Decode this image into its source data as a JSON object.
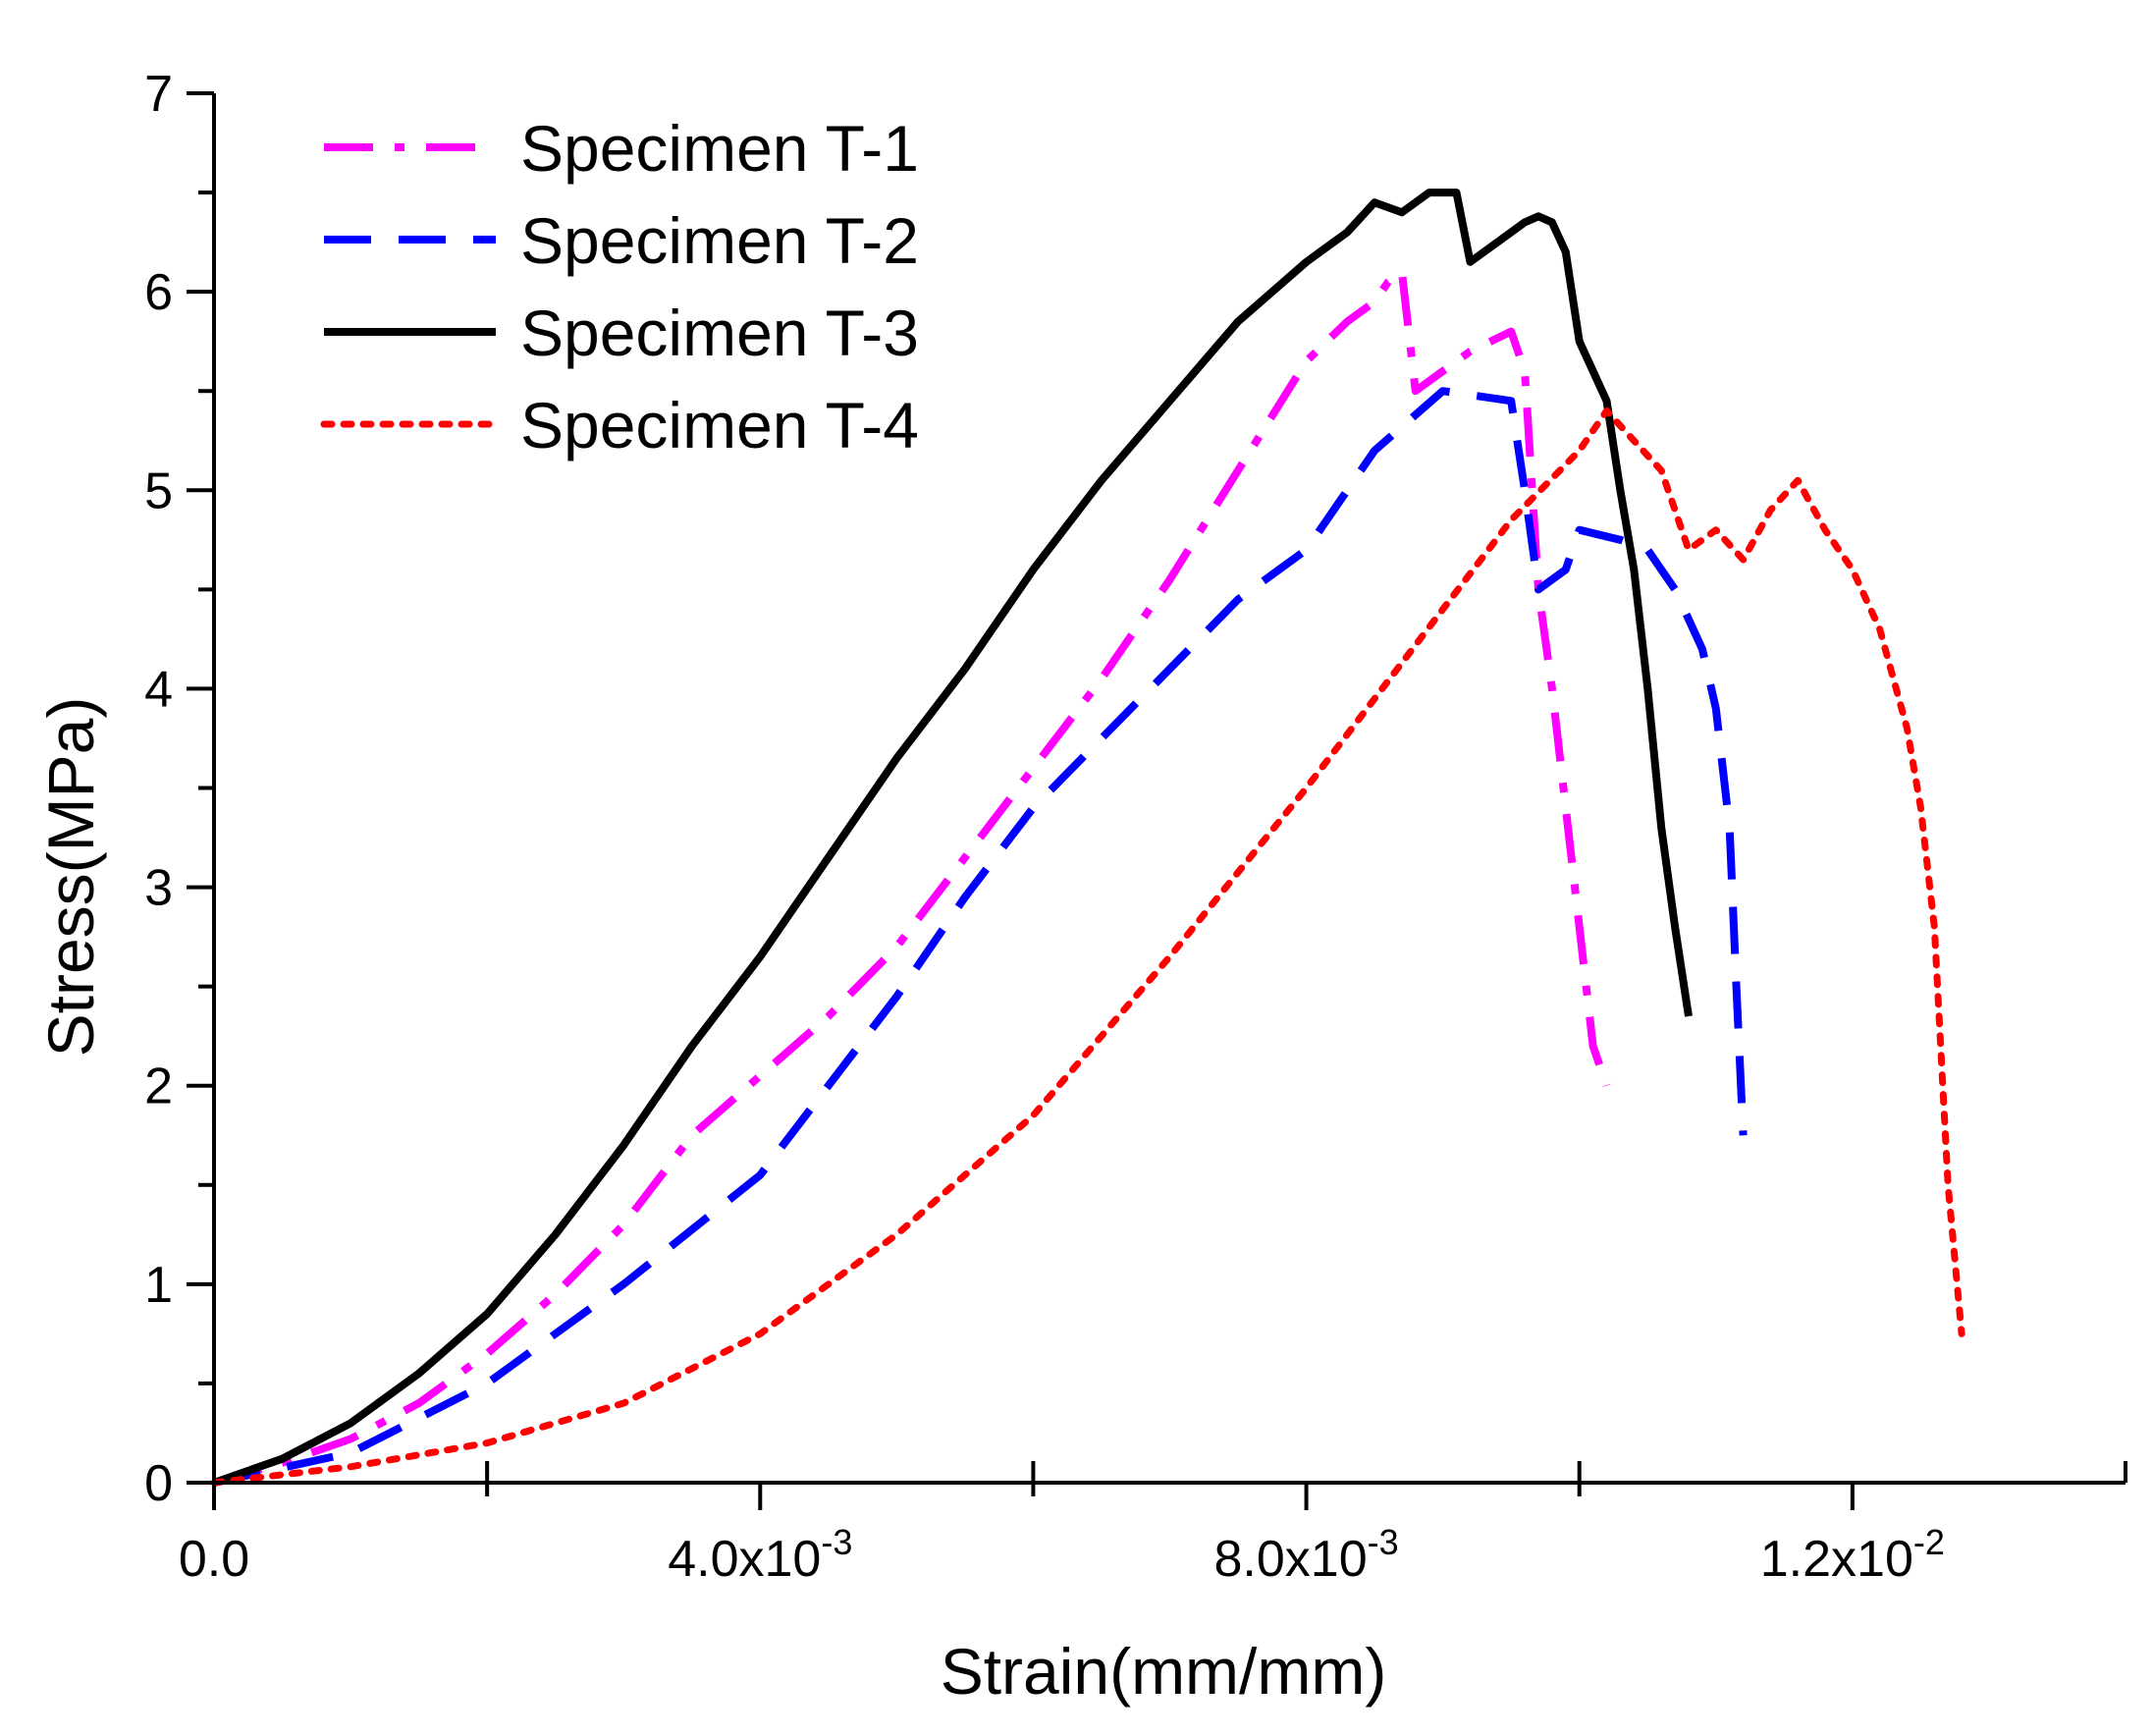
{
  "chart_data": {
    "type": "line",
    "title": "",
    "xlabel": "Strain(mm/mm)",
    "ylabel": "Stress(MPa)",
    "xlim": [
      0,
      0.014
    ],
    "ylim": [
      0,
      7
    ],
    "x_major_ticks": [
      {
        "value": 0.0,
        "base": "0.0",
        "exp": ""
      },
      {
        "value": 0.004,
        "base": "4.0x10",
        "exp": "-3"
      },
      {
        "value": 0.008,
        "base": "8.0x10",
        "exp": "-3"
      },
      {
        "value": 0.012,
        "base": "1.2x10",
        "exp": "-2"
      }
    ],
    "x_minor_ticks": [
      0.002,
      0.006,
      0.01,
      0.014
    ],
    "y_ticks": [
      0,
      1,
      2,
      3,
      4,
      5,
      6,
      7
    ],
    "legend_position": "top-left",
    "series": [
      {
        "name": "Specimen T-1",
        "color": "#ff00ff",
        "style": "dashdot",
        "x": [
          0,
          0.0005,
          0.001,
          0.0015,
          0.002,
          0.0025,
          0.003,
          0.0035,
          0.004,
          0.0045,
          0.005,
          0.0055,
          0.006,
          0.0065,
          0.007,
          0.0075,
          0.008,
          0.0083,
          0.0085,
          0.0086,
          0.0087,
          0.0088,
          0.009,
          0.0092,
          0.0095,
          0.0096,
          0.0097,
          0.0098,
          0.0099,
          0.01,
          0.0101,
          0.0102
        ],
        "y": [
          0,
          0.1,
          0.22,
          0.4,
          0.65,
          0.95,
          1.3,
          1.75,
          2.05,
          2.35,
          2.7,
          3.15,
          3.6,
          4.05,
          4.55,
          5.1,
          5.65,
          5.85,
          5.95,
          6.05,
          6.1,
          5.5,
          5.6,
          5.7,
          5.8,
          5.6,
          4.5,
          4.0,
          3.4,
          2.8,
          2.2,
          2.0
        ]
      },
      {
        "name": "Specimen T-2",
        "color": "#0000ff",
        "style": "dash",
        "x": [
          0,
          0.001,
          0.002,
          0.003,
          0.004,
          0.0045,
          0.005,
          0.0055,
          0.006,
          0.0065,
          0.007,
          0.0075,
          0.008,
          0.0083,
          0.0085,
          0.009,
          0.0095,
          0.0096,
          0.0097,
          0.0099,
          0.01,
          0.0103,
          0.0105,
          0.0107,
          0.0109,
          0.011,
          0.0111,
          0.01115,
          0.0112
        ],
        "y": [
          0,
          0.15,
          0.5,
          1.0,
          1.55,
          2.0,
          2.45,
          2.95,
          3.4,
          3.75,
          4.1,
          4.45,
          4.7,
          5.0,
          5.2,
          5.5,
          5.45,
          5.0,
          4.5,
          4.6,
          4.8,
          4.75,
          4.7,
          4.5,
          4.2,
          3.9,
          3.3,
          2.5,
          1.75
        ]
      },
      {
        "name": "Specimen T-3",
        "color": "#000000",
        "style": "solid",
        "x": [
          0,
          0.0005,
          0.001,
          0.0015,
          0.002,
          0.0025,
          0.003,
          0.0035,
          0.004,
          0.0045,
          0.005,
          0.0055,
          0.006,
          0.0065,
          0.007,
          0.0075,
          0.008,
          0.0083,
          0.0085,
          0.0087,
          0.0089,
          0.0091,
          0.0092,
          0.0093,
          0.0094,
          0.0095,
          0.0096,
          0.0097,
          0.0098,
          0.0099,
          0.01,
          0.0102,
          0.0103,
          0.0104,
          0.0105,
          0.0106,
          0.0107,
          0.0108
        ],
        "y": [
          0,
          0.12,
          0.3,
          0.55,
          0.85,
          1.25,
          1.7,
          2.2,
          2.65,
          3.15,
          3.65,
          4.1,
          4.6,
          5.05,
          5.45,
          5.85,
          6.15,
          6.3,
          6.45,
          6.4,
          6.5,
          6.5,
          6.15,
          6.2,
          6.25,
          6.3,
          6.35,
          6.38,
          6.35,
          6.2,
          5.75,
          5.45,
          5.0,
          4.6,
          4.0,
          3.3,
          2.8,
          2.35
        ]
      },
      {
        "name": "Specimen T-4",
        "color": "#ff0000",
        "style": "dot",
        "x": [
          0,
          0.001,
          0.002,
          0.003,
          0.004,
          0.005,
          0.006,
          0.007,
          0.008,
          0.009,
          0.0095,
          0.01,
          0.0102,
          0.0104,
          0.0106,
          0.0108,
          0.011,
          0.0112,
          0.0114,
          0.0116,
          0.0118,
          0.012,
          0.0122,
          0.0124,
          0.0125,
          0.0126,
          0.0127,
          0.0128
        ],
        "y": [
          0,
          0.08,
          0.2,
          0.4,
          0.75,
          1.25,
          1.85,
          2.65,
          3.5,
          4.4,
          4.85,
          5.2,
          5.4,
          5.25,
          5.1,
          4.7,
          4.8,
          4.65,
          4.9,
          5.05,
          4.8,
          4.6,
          4.3,
          3.8,
          3.4,
          2.8,
          1.5,
          0.75
        ]
      }
    ]
  }
}
